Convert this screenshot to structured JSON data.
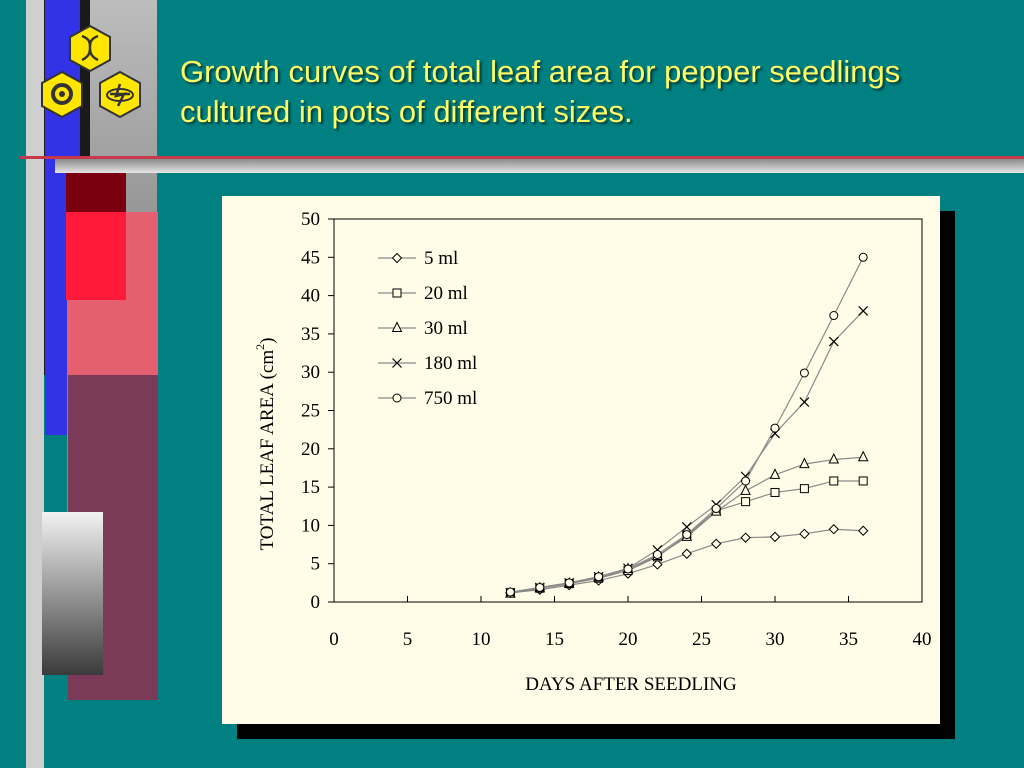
{
  "slide": {
    "title_lines": [
      "Growth curves of total leaf area for pepper seedlings",
      "cultured in pots of different sizes."
    ],
    "logo_icon": "hexagon-logo-icon",
    "background_color": "#008080",
    "title_color": "#ffff66"
  },
  "chart_data": {
    "type": "line",
    "title": "",
    "xlabel": "DAYS AFTER SEEDLING",
    "ylabel": "TOTAL LEAF AREA (cm",
    "ylabel_superscript": "2",
    "ylabel_close": ")",
    "xlim": [
      0,
      40
    ],
    "ylim": [
      0,
      50
    ],
    "xticks": [
      0,
      5,
      10,
      15,
      20,
      25,
      30,
      35,
      40
    ],
    "yticks": [
      0,
      5,
      10,
      15,
      20,
      25,
      30,
      35,
      40,
      45,
      50
    ],
    "grid": false,
    "legend_position": "top-left",
    "x": [
      12,
      14,
      16,
      18,
      20,
      22,
      24,
      26,
      28,
      30,
      32,
      34,
      36
    ],
    "series": [
      {
        "name": "5 ml",
        "marker": "diamond",
        "values": [
          1.2,
          1.6,
          2.2,
          2.8,
          3.7,
          4.9,
          6.3,
          7.6,
          8.4,
          8.5,
          8.9,
          9.5,
          9.3
        ]
      },
      {
        "name": "20 ml",
        "marker": "square",
        "values": [
          1.2,
          1.8,
          2.4,
          3.1,
          4.1,
          5.9,
          8.7,
          11.9,
          13.1,
          14.3,
          14.8,
          15.8,
          15.8
        ]
      },
      {
        "name": "30 ml",
        "marker": "triangle",
        "values": [
          1.1,
          1.8,
          2.4,
          3.2,
          4.3,
          6.0,
          8.5,
          11.8,
          14.5,
          16.6,
          18.0,
          18.6,
          18.9
        ]
      },
      {
        "name": "180 ml",
        "marker": "cross",
        "values": [
          1.2,
          1.9,
          2.5,
          3.3,
          4.4,
          6.8,
          9.8,
          12.7,
          16.4,
          22.0,
          26.1,
          34.0,
          38.0
        ]
      },
      {
        "name": "750 ml",
        "marker": "circle",
        "values": [
          1.3,
          1.9,
          2.5,
          3.3,
          4.3,
          6.2,
          8.8,
          12.2,
          15.8,
          22.7,
          29.9,
          37.4,
          45.0
        ]
      }
    ]
  }
}
